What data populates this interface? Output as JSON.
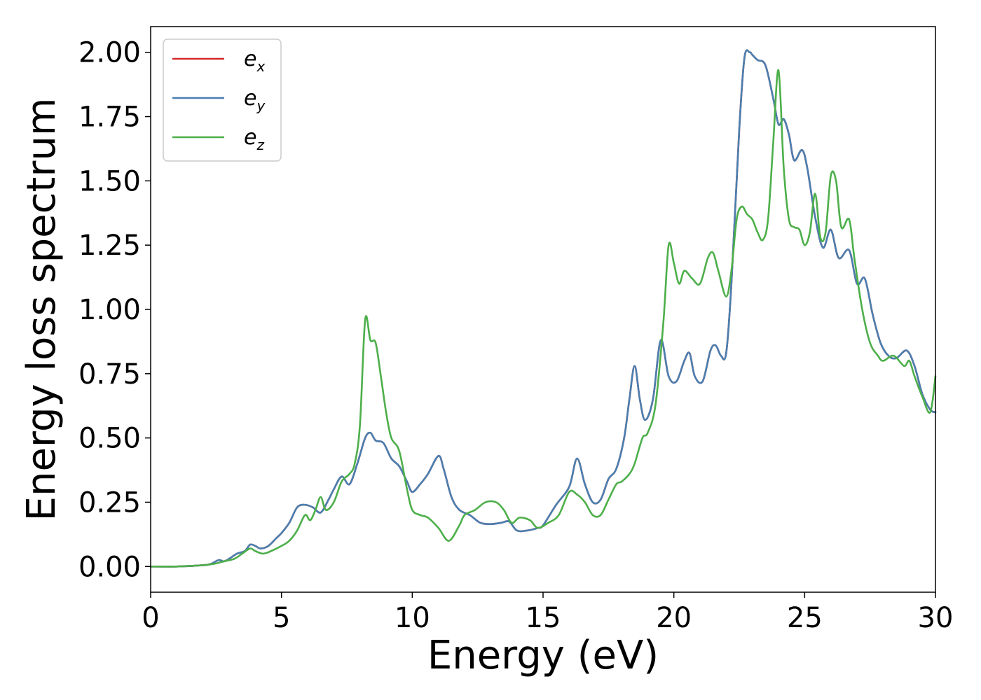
{
  "chart_data": {
    "type": "line",
    "xlabel": "Energy (eV)",
    "ylabel": "Energy loss spectrum",
    "xlim": [
      0,
      30
    ],
    "ylim": [
      -0.1,
      2.1
    ],
    "x_ticks": [
      "0",
      "5",
      "10",
      "15",
      "20",
      "25",
      "30"
    ],
    "y_ticks": [
      "0.00",
      "0.25",
      "0.50",
      "0.75",
      "1.00",
      "1.25",
      "1.50",
      "1.75",
      "2.00"
    ],
    "grid": false,
    "legend_position": "top-left",
    "series": [
      {
        "name": "e_x",
        "legend_base": "e",
        "legend_sub": "x",
        "color": "#d62728",
        "x": [
          0,
          1,
          2,
          2.3,
          2.6,
          2.8,
          3.0,
          3.3,
          3.6,
          3.8,
          4.0,
          4.2,
          4.5,
          4.8,
          5.0,
          5.3,
          5.6,
          5.9,
          6.2,
          6.5,
          6.8,
          7.0,
          7.3,
          7.6,
          7.9,
          8.2,
          8.4,
          8.6,
          8.9,
          9.2,
          9.5,
          9.8,
          10.0,
          10.3,
          10.6,
          11.0,
          11.2,
          11.5,
          11.8,
          12.2,
          12.6,
          13.0,
          13.4,
          13.7,
          14.0,
          14.4,
          14.8,
          15.0,
          15.5,
          16.0,
          16.3,
          16.6,
          16.9,
          17.2,
          17.5,
          17.8,
          18.1,
          18.3,
          18.5,
          18.7,
          18.9,
          19.2,
          19.5,
          19.8,
          20.1,
          20.4,
          20.6,
          20.8,
          21.1,
          21.4,
          21.6,
          21.8,
          22.0,
          22.2,
          22.5,
          22.7,
          22.9,
          23.0,
          23.2,
          23.5,
          23.8,
          24.0,
          24.2,
          24.4,
          24.6,
          24.9,
          25.1,
          25.4,
          25.7,
          26.0,
          26.3,
          26.7,
          27.0,
          27.3,
          27.6,
          27.9,
          28.2,
          28.5,
          28.9,
          29.2,
          29.5,
          29.8,
          30.0
        ],
        "y": [
          0,
          0,
          0.005,
          0.01,
          0.025,
          0.02,
          0.03,
          0.05,
          0.06,
          0.085,
          0.08,
          0.07,
          0.08,
          0.11,
          0.13,
          0.17,
          0.23,
          0.24,
          0.23,
          0.21,
          0.26,
          0.3,
          0.35,
          0.32,
          0.4,
          0.5,
          0.52,
          0.49,
          0.48,
          0.42,
          0.39,
          0.33,
          0.29,
          0.32,
          0.36,
          0.43,
          0.38,
          0.27,
          0.22,
          0.2,
          0.17,
          0.165,
          0.17,
          0.175,
          0.14,
          0.14,
          0.15,
          0.16,
          0.24,
          0.31,
          0.42,
          0.32,
          0.25,
          0.26,
          0.34,
          0.38,
          0.5,
          0.65,
          0.78,
          0.65,
          0.57,
          0.65,
          0.88,
          0.74,
          0.72,
          0.8,
          0.83,
          0.74,
          0.72,
          0.84,
          0.86,
          0.82,
          0.83,
          1.1,
          1.7,
          1.98,
          2.0,
          1.99,
          1.97,
          1.95,
          1.82,
          1.72,
          1.74,
          1.68,
          1.58,
          1.62,
          1.55,
          1.36,
          1.24,
          1.31,
          1.2,
          1.23,
          1.1,
          1.12,
          0.98,
          0.87,
          0.82,
          0.81,
          0.84,
          0.78,
          0.67,
          0.61,
          0.6
        ]
      },
      {
        "name": "e_y",
        "legend_base": "e",
        "legend_sub": "y",
        "color": "#4a7fb0",
        "x": [
          0,
          1,
          2,
          2.3,
          2.6,
          2.8,
          3.0,
          3.3,
          3.6,
          3.8,
          4.0,
          4.2,
          4.5,
          4.8,
          5.0,
          5.3,
          5.6,
          5.9,
          6.2,
          6.5,
          6.8,
          7.0,
          7.3,
          7.6,
          7.9,
          8.2,
          8.4,
          8.6,
          8.9,
          9.2,
          9.5,
          9.8,
          10.0,
          10.3,
          10.6,
          11.0,
          11.2,
          11.5,
          11.8,
          12.2,
          12.6,
          13.0,
          13.4,
          13.7,
          14.0,
          14.4,
          14.8,
          15.0,
          15.5,
          16.0,
          16.3,
          16.6,
          16.9,
          17.2,
          17.5,
          17.8,
          18.1,
          18.3,
          18.5,
          18.7,
          18.9,
          19.2,
          19.5,
          19.8,
          20.1,
          20.4,
          20.6,
          20.8,
          21.1,
          21.4,
          21.6,
          21.8,
          22.0,
          22.2,
          22.5,
          22.7,
          22.9,
          23.0,
          23.2,
          23.5,
          23.8,
          24.0,
          24.2,
          24.4,
          24.6,
          24.9,
          25.1,
          25.4,
          25.7,
          26.0,
          26.3,
          26.7,
          27.0,
          27.3,
          27.6,
          27.9,
          28.2,
          28.5,
          28.9,
          29.2,
          29.5,
          29.8,
          30.0
        ],
        "y": [
          0,
          0,
          0.005,
          0.01,
          0.025,
          0.02,
          0.03,
          0.05,
          0.06,
          0.085,
          0.08,
          0.07,
          0.08,
          0.11,
          0.13,
          0.17,
          0.23,
          0.24,
          0.23,
          0.21,
          0.26,
          0.3,
          0.35,
          0.32,
          0.4,
          0.5,
          0.52,
          0.49,
          0.48,
          0.42,
          0.39,
          0.33,
          0.29,
          0.32,
          0.36,
          0.43,
          0.38,
          0.27,
          0.22,
          0.2,
          0.17,
          0.165,
          0.17,
          0.175,
          0.14,
          0.14,
          0.15,
          0.16,
          0.24,
          0.31,
          0.42,
          0.32,
          0.25,
          0.26,
          0.34,
          0.38,
          0.5,
          0.65,
          0.78,
          0.65,
          0.57,
          0.65,
          0.88,
          0.74,
          0.72,
          0.8,
          0.83,
          0.74,
          0.72,
          0.84,
          0.86,
          0.82,
          0.83,
          1.1,
          1.7,
          1.98,
          2.0,
          1.99,
          1.97,
          1.95,
          1.82,
          1.72,
          1.74,
          1.68,
          1.58,
          1.62,
          1.55,
          1.36,
          1.24,
          1.31,
          1.2,
          1.23,
          1.1,
          1.12,
          0.98,
          0.87,
          0.82,
          0.81,
          0.84,
          0.78,
          0.67,
          0.61,
          0.6
        ]
      },
      {
        "name": "e_z",
        "legend_base": "e",
        "legend_sub": "z",
        "color": "#4daf4a",
        "x": [
          0,
          1,
          2,
          2.4,
          2.8,
          3.2,
          3.5,
          3.8,
          4.0,
          4.3,
          4.6,
          5.0,
          5.3,
          5.6,
          5.9,
          6.1,
          6.3,
          6.5,
          6.7,
          7.0,
          7.3,
          7.6,
          7.8,
          8.0,
          8.2,
          8.4,
          8.6,
          8.8,
          9.0,
          9.2,
          9.5,
          9.8,
          10.0,
          10.3,
          10.6,
          11.0,
          11.4,
          11.8,
          12.0,
          12.4,
          12.8,
          13.2,
          13.5,
          13.8,
          14.1,
          14.5,
          14.8,
          15.2,
          15.6,
          16.0,
          16.3,
          16.6,
          16.9,
          17.2,
          17.5,
          17.8,
          18.0,
          18.3,
          18.5,
          18.8,
          19.0,
          19.3,
          19.6,
          19.8,
          20.0,
          20.2,
          20.4,
          20.7,
          21.0,
          21.3,
          21.5,
          21.7,
          22.0,
          22.2,
          22.4,
          22.6,
          22.8,
          23.0,
          23.2,
          23.4,
          23.6,
          23.8,
          24.0,
          24.2,
          24.4,
          24.6,
          24.8,
          25.0,
          25.2,
          25.4,
          25.6,
          25.8,
          26.0,
          26.2,
          26.4,
          26.7,
          26.9,
          27.2,
          27.5,
          27.8,
          28.0,
          28.4,
          28.8,
          29.0,
          29.2,
          29.5,
          29.8,
          30.0
        ],
        "y": [
          0,
          0,
          0.005,
          0.01,
          0.02,
          0.03,
          0.05,
          0.07,
          0.06,
          0.05,
          0.06,
          0.08,
          0.1,
          0.14,
          0.2,
          0.18,
          0.22,
          0.27,
          0.22,
          0.25,
          0.33,
          0.36,
          0.4,
          0.55,
          0.96,
          0.88,
          0.87,
          0.74,
          0.6,
          0.5,
          0.45,
          0.3,
          0.22,
          0.2,
          0.19,
          0.15,
          0.1,
          0.16,
          0.2,
          0.22,
          0.25,
          0.25,
          0.22,
          0.17,
          0.19,
          0.18,
          0.15,
          0.17,
          0.2,
          0.29,
          0.28,
          0.25,
          0.2,
          0.2,
          0.26,
          0.32,
          0.33,
          0.36,
          0.4,
          0.5,
          0.52,
          0.63,
          0.95,
          1.25,
          1.18,
          1.1,
          1.15,
          1.12,
          1.1,
          1.2,
          1.22,
          1.15,
          1.05,
          1.15,
          1.35,
          1.4,
          1.37,
          1.35,
          1.3,
          1.27,
          1.35,
          1.65,
          1.93,
          1.55,
          1.35,
          1.32,
          1.31,
          1.25,
          1.3,
          1.45,
          1.28,
          1.3,
          1.52,
          1.5,
          1.32,
          1.35,
          1.2,
          1.0,
          0.87,
          0.82,
          0.8,
          0.82,
          0.78,
          0.8,
          0.74,
          0.66,
          0.6,
          0.74
        ]
      }
    ]
  }
}
